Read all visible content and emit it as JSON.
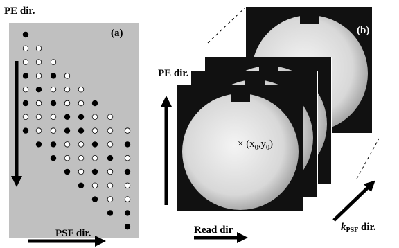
{
  "panel_a": {
    "label": "(a)",
    "vertical_axis_label": "PE dir.",
    "horizontal_axis_label": "PSF dir."
  },
  "panel_b": {
    "label": "(b)",
    "vertical_axis_label": "PE dir.",
    "horizontal_axis_label": "Read dir",
    "point_label": [
      "× (x",
      "0",
      ",y",
      "0",
      ")"
    ],
    "depth_axis_label": {
      "symbol": "k",
      "subscript": "PSF",
      "text": " dir."
    }
  }
}
